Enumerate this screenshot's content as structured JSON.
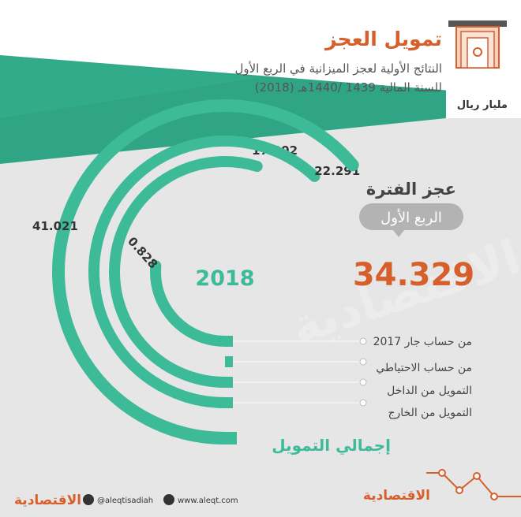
{
  "header": {
    "title": "تمويل العجز",
    "subtitle_line1": "النتائج الأولية لعجز الميزانية في الربع الأول",
    "subtitle_line2": "للسنة المالية 1439 /1440هـ (2018)",
    "unit": "مليار ريال",
    "icon": "money-stack-icon"
  },
  "deficit": {
    "label": "عجز الفترة",
    "period_badge": "الربع الأول",
    "value": "34.329"
  },
  "chart_data": {
    "type": "radial-bar",
    "center_label": "2018",
    "total_label": "إجمالي التمويل",
    "total_value": 41.021,
    "categories": [
      "من حساب جار 2017",
      "من حساب الاحتياطي",
      "التمويل من الداخل",
      "التمويل من الخارج"
    ],
    "values": [
      0.828,
      0,
      17.902,
      22.291
    ],
    "value_labels": [
      "0.828",
      "0",
      "17.902",
      "22.291"
    ],
    "total_value_label": "41.021"
  },
  "colors": {
    "bar": "#3dba97",
    "accent": "#d65f2c",
    "title": "#d65f2c",
    "text": "#444444",
    "badge": "#b3b3b3",
    "band": "#2fa585"
  },
  "footer": {
    "logo_text": "الاقتصادية",
    "twitter_handle": "@aleqtisadiah",
    "website": "www.aleqt.com",
    "brand_text": "الاقتصادية"
  }
}
